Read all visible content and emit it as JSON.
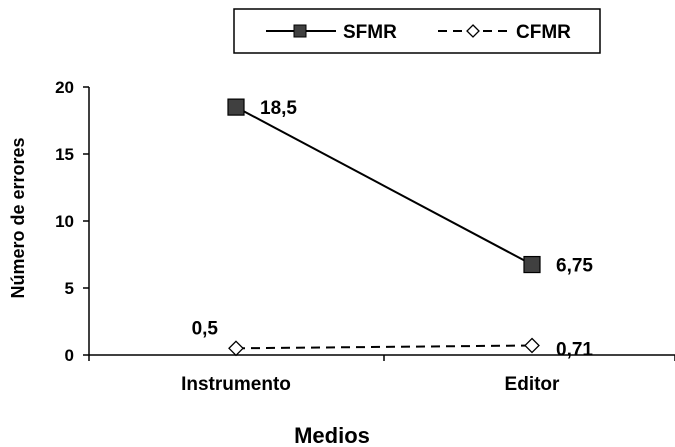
{
  "chart_data": {
    "type": "line",
    "categories": [
      "Instrumento",
      "Editor"
    ],
    "series": [
      {
        "name": "SFMR",
        "values": [
          18.5,
          6.75
        ],
        "labels": [
          "18,5",
          "6,75"
        ],
        "line": "solid",
        "marker": "square",
        "color": "#404040"
      },
      {
        "name": "CFMR",
        "values": [
          0.5,
          0.71
        ],
        "labels": [
          "0,5",
          "0,71"
        ],
        "line": "dashed",
        "marker": "diamond",
        "color": "#ffffff"
      }
    ],
    "title": "",
    "xlabel": "Medios",
    "ylabel": "Número de errores",
    "ylim": [
      0,
      20
    ],
    "yticks": [
      0,
      5,
      10,
      15,
      20
    ],
    "grid": false,
    "legend": "top"
  }
}
